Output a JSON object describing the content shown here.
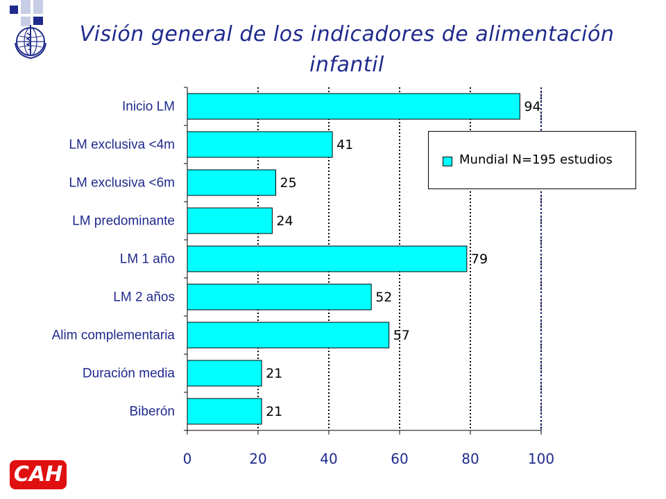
{
  "slide": {
    "title": "Visión general de los indicadores de alimentación infantil",
    "badge": "CAH",
    "colors": {
      "title": "#1f2a8c",
      "bar": "#00ffff",
      "axis_text": "#1f2a8c",
      "badge_bg": "#e01010",
      "square_dark": "#1f2a8c",
      "square_light": "#c8cde6"
    }
  },
  "chart_data": {
    "type": "bar",
    "orientation": "horizontal",
    "title": "",
    "xlabel": "",
    "ylabel": "",
    "xlim": [
      0,
      100
    ],
    "xticks": [
      0,
      20,
      40,
      60,
      80,
      100
    ],
    "grid": "vertical dotted",
    "legend_position": "top-right",
    "categories": [
      "Inicio LM",
      "LM exclusiva <4m",
      "LM exclusiva <6m",
      "LM predominante",
      "LM 1 año",
      "LM 2 años",
      "Alim complementaria",
      "Duración media",
      "Biberón"
    ],
    "series": [
      {
        "name": "Mundial N=195 estudios",
        "color": "#00ffff",
        "values": [
          94,
          41,
          25,
          24,
          79,
          52,
          57,
          21,
          21
        ]
      }
    ]
  }
}
